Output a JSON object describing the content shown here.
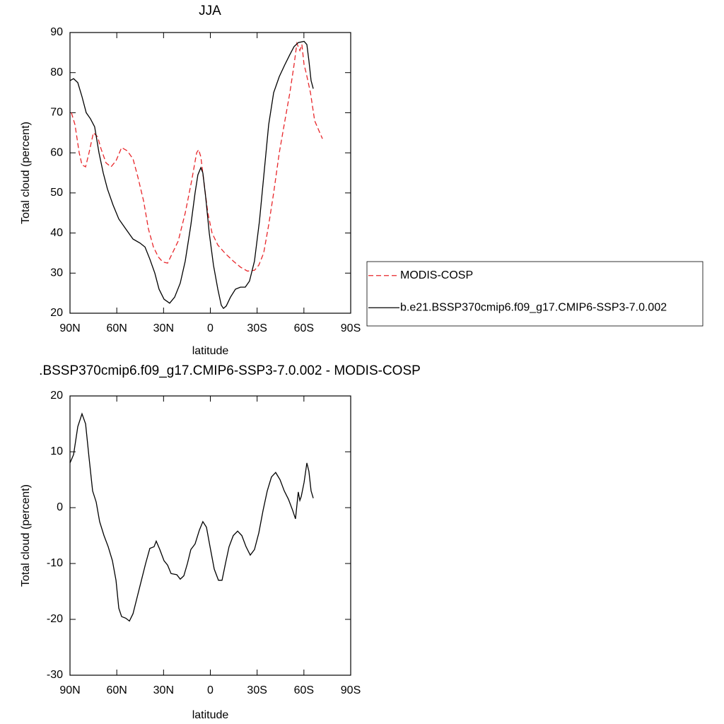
{
  "chart_data": [
    {
      "type": "line",
      "title": "JJA",
      "xlabel": "latitude",
      "ylabel": "Total cloud (percent)",
      "xlim": [
        90,
        -90
      ],
      "xticks": [
        {
          "value": 90,
          "label": "90N"
        },
        {
          "value": 60,
          "label": "60N"
        },
        {
          "value": 30,
          "label": "30N"
        },
        0,
        {
          "value": -30,
          "label": "30S"
        },
        {
          "value": -60,
          "label": "60S"
        },
        {
          "value": -90,
          "label": "90S"
        }
      ],
      "ylim": [
        20,
        90
      ],
      "yticks": [
        20,
        30,
        40,
        50,
        60,
        70,
        80,
        90
      ],
      "series": [
        {
          "name": "MODIS-COSP",
          "color": "#e8262a",
          "line_style": "dashed",
          "x": [
            89.1,
            86.8,
            84.1,
            82.3,
            80.0,
            77.8,
            75.0,
            72.3,
            70.1,
            66.9,
            63.7,
            60.5,
            56.9,
            53.3,
            49.6,
            46.5,
            42.8,
            39.7,
            36.5,
            33.3,
            30.6,
            27.4,
            24.3,
            20.6,
            16.1,
            12.0,
            8.8,
            7.5,
            6.1,
            3.9,
            1.6,
            -1.1,
            -4.8,
            -9.3,
            -14.7,
            -19.3,
            -23.8,
            -28.3,
            -31.1,
            -34.2,
            -37.4,
            -40.6,
            -44.2,
            -47.8,
            -51.0,
            -53.7,
            -55.5,
            -57.4,
            -58.7,
            -60.1,
            -61.4,
            -64.2,
            -66.9,
            -69.1,
            -71.9
          ],
          "values": [
            70,
            67,
            60,
            57,
            56.5,
            60,
            65,
            64,
            61,
            57.5,
            56.5,
            58,
            61.3,
            60.5,
            58.5,
            54,
            48,
            41,
            36.5,
            34,
            32.8,
            32.5,
            35,
            38,
            45,
            53,
            60,
            60.8,
            59,
            52,
            45,
            40,
            37,
            35,
            33,
            31.5,
            30.5,
            30.7,
            32,
            35,
            42,
            50,
            60,
            68,
            75,
            82,
            87.3,
            85.5,
            87,
            82,
            80,
            75,
            68,
            66,
            63.5
          ]
        },
        {
          "name": "b.e21.BSSP370cmip6.f09_g17.CMIP6-SSP3-7.0.002",
          "color": "#000000",
          "line_style": "solid",
          "x": [
            90,
            87.7,
            85.0,
            82.3,
            79.6,
            76.9,
            74.2,
            71.4,
            68.7,
            66.0,
            62.4,
            58.7,
            54.2,
            49.6,
            45.1,
            41.9,
            38.8,
            35.6,
            32.9,
            29.7,
            26.1,
            22.9,
            19.3,
            16.1,
            12.5,
            9.8,
            8.0,
            6.1,
            4.8,
            3.0,
            0.7,
            -2.0,
            -4.8,
            -7.0,
            -8.4,
            -10.2,
            -12.9,
            -16.1,
            -19.3,
            -22.4,
            -25.1,
            -28.3,
            -31.5,
            -34.7,
            -37.4,
            -40.6,
            -44.2,
            -47.8,
            -51.0,
            -53.7,
            -56.4,
            -60.1,
            -61.9,
            -63.2,
            -64.6,
            -66.0
          ],
          "values": [
            78,
            78.5,
            77.5,
            74,
            70,
            68.5,
            66.5,
            60,
            55,
            51,
            47,
            43.5,
            41,
            38.5,
            37.5,
            36.5,
            33.5,
            30,
            26,
            23.5,
            22.5,
            24,
            27.5,
            33,
            42,
            50,
            54.5,
            56.3,
            55,
            49,
            40,
            32,
            26,
            22,
            21.2,
            21.8,
            24,
            26,
            26.5,
            26.5,
            28,
            33,
            43,
            56,
            67,
            75,
            79,
            82,
            84.5,
            86.5,
            87.5,
            87.8,
            87,
            83,
            78,
            76
          ]
        }
      ]
    },
    {
      "type": "line",
      "title": ".BSSP370cmip6.f09_g17.CMIP6-SSP3-7.0.002 - MODIS-COSP",
      "xlabel": "latitude",
      "ylabel": "Total cloud (percent)",
      "xlim": [
        90,
        -90
      ],
      "xticks": [
        {
          "value": 90,
          "label": "90N"
        },
        {
          "value": 60,
          "label": "60N"
        },
        {
          "value": 30,
          "label": "30N"
        },
        0,
        {
          "value": -30,
          "label": "30S"
        },
        {
          "value": -60,
          "label": "60S"
        },
        {
          "value": -90,
          "label": "90S"
        }
      ],
      "ylim": [
        -30,
        20
      ],
      "yticks": [
        -30,
        -20,
        -10,
        0,
        10,
        20
      ],
      "series": [
        {
          "color": "#000000",
          "line_style": "solid",
          "x": [
            90,
            87.7,
            85.0,
            82.3,
            80.0,
            77.8,
            75.5,
            73.2,
            71.0,
            68.2,
            65.5,
            62.8,
            60.5,
            58.7,
            56.9,
            54.2,
            51.9,
            49.6,
            46.9,
            44.2,
            41.5,
            38.8,
            36.1,
            34.7,
            32.4,
            29.7,
            27.4,
            25.2,
            21.5,
            19.3,
            17.0,
            14.7,
            12.5,
            9.8,
            7.0,
            4.8,
            2.5,
            0.2,
            -2.5,
            -5.2,
            -7.5,
            -9.7,
            -12.0,
            -14.7,
            -17.5,
            -20.2,
            -22.9,
            -25.6,
            -28.3,
            -31.1,
            -33.8,
            -36.5,
            -39.2,
            -41.9,
            -44.7,
            -47.4,
            -50.1,
            -52.8,
            -54.6,
            -56.4,
            -57.4,
            -58.3,
            -60.1,
            -61.9,
            -63.2,
            -64.6,
            -66.0
          ],
          "values": [
            8,
            9.5,
            14.5,
            16.8,
            15,
            9,
            3,
            1,
            -2.5,
            -5,
            -7,
            -9.5,
            -13,
            -18,
            -19.5,
            -19.8,
            -20.3,
            -19,
            -16,
            -13,
            -10,
            -7.3,
            -7,
            -6,
            -7.5,
            -9.5,
            -10.3,
            -11.8,
            -12,
            -12.8,
            -12.2,
            -10,
            -7.5,
            -6.5,
            -4,
            -2.5,
            -3.5,
            -7,
            -11,
            -13,
            -13,
            -10,
            -7,
            -5,
            -4.2,
            -5,
            -7,
            -8.5,
            -7.5,
            -4.5,
            -0.5,
            3,
            5.5,
            6.3,
            5,
            3,
            1.5,
            -0.5,
            -2,
            2.8,
            1.3,
            2,
            4.5,
            8,
            6.5,
            3,
            1.7
          ]
        }
      ]
    }
  ]
}
